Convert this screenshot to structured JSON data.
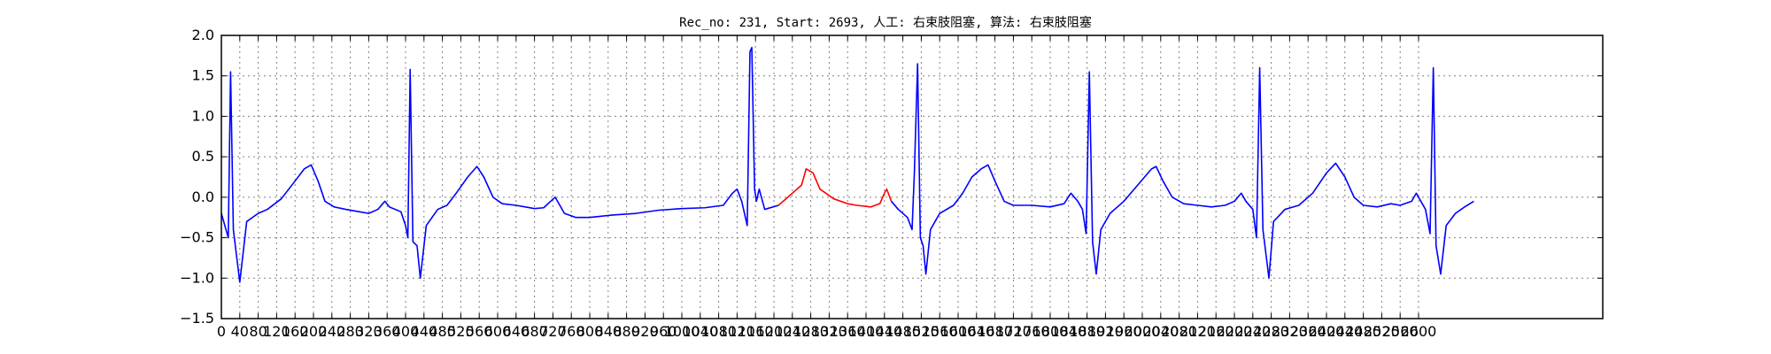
{
  "chart_data": {
    "type": "line",
    "title": "Rec_no: 231, Start: 2693, 人工: 右束肢阻塞, 算法: 右束肢阻塞",
    "xlabel": "",
    "ylabel": "",
    "xlim": [
      0,
      3000
    ],
    "ylim": [
      -1.5,
      2.0
    ],
    "grid": true,
    "yticks": [
      -1.5,
      -1.0,
      -0.5,
      0.0,
      0.5,
      1.0,
      1.5,
      2.0
    ],
    "ytick_labels": [
      "−1.5",
      "−1.0",
      "−0.5",
      "0.0",
      "0.5",
      "1.0",
      "1.5",
      "2.0"
    ],
    "xticks": [
      0,
      40,
      80,
      120,
      160,
      200,
      240,
      280,
      320,
      360,
      400,
      440,
      480,
      520,
      560,
      600,
      640,
      680,
      720,
      760,
      800,
      840,
      880,
      920,
      960,
      1000,
      1040,
      1080,
      1120,
      1160,
      1200,
      1240,
      1280,
      1320,
      1360,
      1400,
      1440,
      1480,
      1520,
      1560,
      1600,
      1640,
      1680,
      1720,
      1760,
      1800,
      1840,
      1880,
      1920,
      1960,
      2000,
      2040,
      2080,
      2120,
      2160,
      2200,
      2240,
      2280,
      2320,
      2360,
      2400,
      2440,
      2480,
      2520,
      2560,
      2600
    ],
    "xtick_labels": [
      "0",
      "40",
      "80",
      "120",
      "160",
      "200",
      "240",
      "280",
      "320",
      "360",
      "400",
      "440",
      "480",
      "520",
      "560",
      "600",
      "640",
      "680",
      "720",
      "760",
      "800",
      "840",
      "880",
      "920",
      "960",
      "1000",
      "1040",
      "1080",
      "1120",
      "1160",
      "1200",
      "1240",
      "1280",
      "1320",
      "1360",
      "1400",
      "1440",
      "1480",
      "1520",
      "1560",
      "1600",
      "1640",
      "1680",
      "1720",
      "1760",
      "1800",
      "1840",
      "1880",
      "1920",
      "1960",
      "2000",
      "2040",
      "2080",
      "2120",
      "2160",
      "2200",
      "2240",
      "2280",
      "2320",
      "2360",
      "2400",
      "2440",
      "2480",
      "2520",
      "2560",
      "2600"
    ],
    "colors": {
      "normal": "#0000ff",
      "highlight": "#ff0000"
    },
    "highlight_range": [
      1240,
      1460
    ],
    "series": [
      {
        "values": [
          [
            0,
            -0.2
          ],
          [
            15,
            -0.5
          ],
          [
            20,
            1.55
          ],
          [
            26,
            -0.4
          ],
          [
            40,
            -1.05
          ],
          [
            55,
            -0.3
          ],
          [
            80,
            -0.2
          ],
          [
            100,
            -0.15
          ],
          [
            130,
            -0.02
          ],
          [
            160,
            0.2
          ],
          [
            180,
            0.35
          ],
          [
            195,
            0.4
          ],
          [
            210,
            0.2
          ],
          [
            225,
            -0.05
          ],
          [
            245,
            -0.12
          ],
          [
            270,
            -0.15
          ],
          [
            300,
            -0.18
          ],
          [
            320,
            -0.2
          ],
          [
            340,
            -0.15
          ],
          [
            355,
            -0.05
          ],
          [
            365,
            -0.12
          ],
          [
            390,
            -0.18
          ],
          [
            400,
            -0.35
          ],
          [
            405,
            -0.5
          ],
          [
            410,
            1.58
          ],
          [
            416,
            -0.55
          ],
          [
            425,
            -0.6
          ],
          [
            432,
            -1.0
          ],
          [
            445,
            -0.35
          ],
          [
            470,
            -0.15
          ],
          [
            490,
            -0.1
          ],
          [
            510,
            0.05
          ],
          [
            535,
            0.25
          ],
          [
            555,
            0.38
          ],
          [
            570,
            0.25
          ],
          [
            590,
            0.0
          ],
          [
            610,
            -0.08
          ],
          [
            640,
            -0.1
          ],
          [
            660,
            -0.12
          ],
          [
            680,
            -0.14
          ],
          [
            700,
            -0.13
          ],
          [
            715,
            -0.05
          ],
          [
            725,
            0.0
          ],
          [
            745,
            -0.2
          ],
          [
            770,
            -0.25
          ],
          [
            800,
            -0.25
          ],
          [
            850,
            -0.22
          ],
          [
            900,
            -0.2
          ],
          [
            950,
            -0.16
          ],
          [
            1000,
            -0.14
          ],
          [
            1050,
            -0.13
          ],
          [
            1090,
            -0.1
          ],
          [
            1110,
            0.05
          ],
          [
            1120,
            0.1
          ],
          [
            1130,
            -0.05
          ],
          [
            1142,
            -0.35
          ],
          [
            1148,
            1.8
          ],
          [
            1152,
            1.85
          ],
          [
            1158,
            0.1
          ],
          [
            1162,
            -0.05
          ],
          [
            1168,
            0.1
          ],
          [
            1180,
            -0.15
          ],
          [
            1210,
            -0.1
          ],
          [
            1240,
            0.05
          ],
          [
            1260,
            0.15
          ],
          [
            1270,
            0.35
          ],
          [
            1285,
            0.3
          ],
          [
            1300,
            0.1
          ],
          [
            1330,
            -0.02
          ],
          [
            1360,
            -0.08
          ],
          [
            1380,
            -0.1
          ],
          [
            1410,
            -0.12
          ],
          [
            1430,
            -0.08
          ],
          [
            1440,
            0.05
          ],
          [
            1445,
            0.1
          ],
          [
            1455,
            -0.05
          ],
          [
            1470,
            -0.15
          ],
          [
            1490,
            -0.25
          ],
          [
            1500,
            -0.4
          ],
          [
            1505,
            0.3
          ],
          [
            1512,
            1.65
          ],
          [
            1518,
            -0.5
          ],
          [
            1524,
            -0.6
          ],
          [
            1530,
            -0.95
          ],
          [
            1540,
            -0.4
          ],
          [
            1560,
            -0.2
          ],
          [
            1590,
            -0.1
          ],
          [
            1610,
            0.05
          ],
          [
            1630,
            0.25
          ],
          [
            1650,
            0.35
          ],
          [
            1665,
            0.4
          ],
          [
            1680,
            0.2
          ],
          [
            1700,
            -0.05
          ],
          [
            1720,
            -0.1
          ],
          [
            1760,
            -0.1
          ],
          [
            1800,
            -0.12
          ],
          [
            1830,
            -0.08
          ],
          [
            1845,
            0.05
          ],
          [
            1860,
            -0.05
          ],
          [
            1870,
            -0.15
          ],
          [
            1878,
            -0.45
          ],
          [
            1885,
            1.55
          ],
          [
            1892,
            -0.55
          ],
          [
            1900,
            -0.95
          ],
          [
            1910,
            -0.4
          ],
          [
            1930,
            -0.2
          ],
          [
            1960,
            -0.05
          ],
          [
            1990,
            0.15
          ],
          [
            2020,
            0.35
          ],
          [
            2030,
            0.38
          ],
          [
            2045,
            0.2
          ],
          [
            2065,
            0.0
          ],
          [
            2090,
            -0.08
          ],
          [
            2120,
            -0.1
          ],
          [
            2150,
            -0.12
          ],
          [
            2180,
            -0.1
          ],
          [
            2200,
            -0.05
          ],
          [
            2215,
            0.05
          ],
          [
            2225,
            -0.05
          ],
          [
            2240,
            -0.15
          ],
          [
            2248,
            -0.5
          ],
          [
            2255,
            1.6
          ],
          [
            2262,
            -0.4
          ],
          [
            2275,
            -1.0
          ],
          [
            2285,
            -0.3
          ],
          [
            2310,
            -0.15
          ],
          [
            2340,
            -0.1
          ],
          [
            2370,
            0.05
          ],
          [
            2400,
            0.3
          ],
          [
            2420,
            0.42
          ],
          [
            2440,
            0.25
          ],
          [
            2460,
            0.0
          ],
          [
            2480,
            -0.1
          ],
          [
            2510,
            -0.12
          ],
          [
            2540,
            -0.08
          ],
          [
            2560,
            -0.1
          ],
          [
            2585,
            -0.05
          ],
          [
            2595,
            0.05
          ],
          [
            2605,
            -0.05
          ],
          [
            2615,
            -0.15
          ],
          [
            2625,
            -0.45
          ],
          [
            2632,
            1.6
          ],
          [
            2638,
            -0.6
          ],
          [
            2648,
            -0.95
          ],
          [
            2660,
            -0.35
          ],
          [
            2680,
            -0.2
          ],
          [
            2700,
            -0.12
          ],
          [
            2720,
            -0.05
          ]
        ]
      }
    ]
  }
}
